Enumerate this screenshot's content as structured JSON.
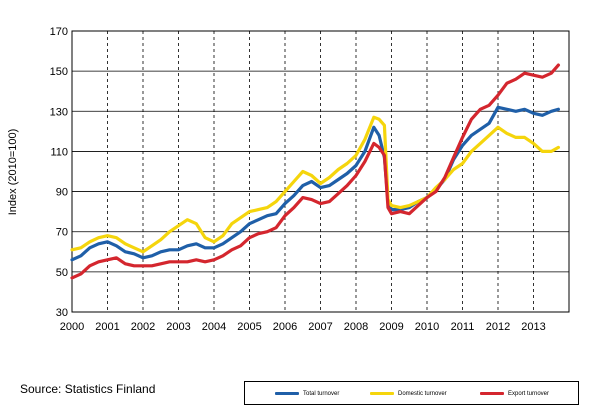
{
  "chart_data": {
    "type": "line",
    "title": "",
    "xlabel": "",
    "ylabel": "Index (2010=100)",
    "ylim": [
      30,
      170
    ],
    "yticks": [
      30,
      50,
      70,
      90,
      110,
      130,
      150,
      170
    ],
    "xlim": [
      2000,
      2014
    ],
    "xticks": [
      "2000",
      "2001",
      "2002",
      "2003",
      "2004",
      "2005",
      "2006",
      "2007",
      "2008",
      "2009",
      "2010",
      "2011",
      "2012",
      "2013"
    ],
    "grid": "vertical dashed yearly, horizontal solid",
    "legend_position": "bottom-right",
    "series": [
      {
        "name": "Total turnover",
        "color": "#1f5fa8",
        "points": [
          [
            2000.0,
            56
          ],
          [
            2000.25,
            58
          ],
          [
            2000.5,
            62
          ],
          [
            2000.75,
            64
          ],
          [
            2001.0,
            65
          ],
          [
            2001.25,
            63
          ],
          [
            2001.5,
            60
          ],
          [
            2001.75,
            59
          ],
          [
            2002.0,
            57
          ],
          [
            2002.25,
            58
          ],
          [
            2002.5,
            60
          ],
          [
            2002.75,
            61
          ],
          [
            2003.0,
            61
          ],
          [
            2003.25,
            63
          ],
          [
            2003.5,
            64
          ],
          [
            2003.75,
            62
          ],
          [
            2004.0,
            62
          ],
          [
            2004.25,
            64
          ],
          [
            2004.5,
            67
          ],
          [
            2004.75,
            70
          ],
          [
            2005.0,
            74
          ],
          [
            2005.25,
            76
          ],
          [
            2005.5,
            78
          ],
          [
            2005.75,
            79
          ],
          [
            2006.0,
            84
          ],
          [
            2006.25,
            88
          ],
          [
            2006.5,
            93
          ],
          [
            2006.75,
            95
          ],
          [
            2007.0,
            92
          ],
          [
            2007.25,
            93
          ],
          [
            2007.5,
            96
          ],
          [
            2007.75,
            99
          ],
          [
            2008.0,
            103
          ],
          [
            2008.25,
            110
          ],
          [
            2008.5,
            122
          ],
          [
            2008.65,
            118
          ],
          [
            2008.8,
            107
          ],
          [
            2008.9,
            85
          ],
          [
            2009.0,
            81
          ],
          [
            2009.25,
            81
          ],
          [
            2009.5,
            82
          ],
          [
            2009.75,
            85
          ],
          [
            2010.0,
            87
          ],
          [
            2010.25,
            91
          ],
          [
            2010.5,
            96
          ],
          [
            2010.75,
            106
          ],
          [
            2011.0,
            113
          ],
          [
            2011.25,
            118
          ],
          [
            2011.5,
            121
          ],
          [
            2011.75,
            124
          ],
          [
            2012.0,
            132
          ],
          [
            2012.25,
            131
          ],
          [
            2012.5,
            130
          ],
          [
            2012.75,
            131
          ],
          [
            2013.0,
            129
          ],
          [
            2013.25,
            128
          ],
          [
            2013.5,
            130
          ],
          [
            2013.7,
            131
          ]
        ]
      },
      {
        "name": "Domestic turnover",
        "color": "#f5d50c",
        "points": [
          [
            2000.0,
            61
          ],
          [
            2000.25,
            62
          ],
          [
            2000.5,
            65
          ],
          [
            2000.75,
            67
          ],
          [
            2001.0,
            68
          ],
          [
            2001.25,
            67
          ],
          [
            2001.5,
            64
          ],
          [
            2001.75,
            62
          ],
          [
            2002.0,
            60
          ],
          [
            2002.25,
            63
          ],
          [
            2002.5,
            66
          ],
          [
            2002.75,
            70
          ],
          [
            2003.0,
            73
          ],
          [
            2003.25,
            76
          ],
          [
            2003.5,
            74
          ],
          [
            2003.75,
            67
          ],
          [
            2004.0,
            65
          ],
          [
            2004.25,
            68
          ],
          [
            2004.5,
            74
          ],
          [
            2004.75,
            77
          ],
          [
            2005.0,
            80
          ],
          [
            2005.25,
            81
          ],
          [
            2005.5,
            82
          ],
          [
            2005.75,
            85
          ],
          [
            2006.0,
            90
          ],
          [
            2006.25,
            95
          ],
          [
            2006.5,
            100
          ],
          [
            2006.75,
            98
          ],
          [
            2007.0,
            94
          ],
          [
            2007.25,
            97
          ],
          [
            2007.5,
            101
          ],
          [
            2007.75,
            104
          ],
          [
            2008.0,
            108
          ],
          [
            2008.25,
            116
          ],
          [
            2008.5,
            127
          ],
          [
            2008.65,
            126
          ],
          [
            2008.8,
            123
          ],
          [
            2008.9,
            86
          ],
          [
            2009.0,
            83
          ],
          [
            2009.25,
            82
          ],
          [
            2009.5,
            83
          ],
          [
            2009.75,
            85
          ],
          [
            2010.0,
            87
          ],
          [
            2010.25,
            92
          ],
          [
            2010.5,
            96
          ],
          [
            2010.75,
            101
          ],
          [
            2011.0,
            104
          ],
          [
            2011.25,
            110
          ],
          [
            2011.5,
            114
          ],
          [
            2011.75,
            118
          ],
          [
            2012.0,
            122
          ],
          [
            2012.25,
            119
          ],
          [
            2012.5,
            117
          ],
          [
            2012.75,
            117
          ],
          [
            2013.0,
            114
          ],
          [
            2013.25,
            110
          ],
          [
            2013.5,
            110
          ],
          [
            2013.7,
            112
          ]
        ]
      },
      {
        "name": "Export turnover",
        "color": "#d4262e",
        "points": [
          [
            2000.0,
            47
          ],
          [
            2000.25,
            49
          ],
          [
            2000.5,
            53
          ],
          [
            2000.75,
            55
          ],
          [
            2001.0,
            56
          ],
          [
            2001.25,
            57
          ],
          [
            2001.5,
            54
          ],
          [
            2001.75,
            53
          ],
          [
            2002.0,
            53
          ],
          [
            2002.25,
            53
          ],
          [
            2002.5,
            54
          ],
          [
            2002.75,
            55
          ],
          [
            2003.0,
            55
          ],
          [
            2003.25,
            55
          ],
          [
            2003.5,
            56
          ],
          [
            2003.75,
            55
          ],
          [
            2004.0,
            56
          ],
          [
            2004.25,
            58
          ],
          [
            2004.5,
            61
          ],
          [
            2004.75,
            63
          ],
          [
            2005.0,
            67
          ],
          [
            2005.25,
            69
          ],
          [
            2005.5,
            70
          ],
          [
            2005.75,
            72
          ],
          [
            2006.0,
            78
          ],
          [
            2006.25,
            82
          ],
          [
            2006.5,
            87
          ],
          [
            2006.75,
            86
          ],
          [
            2007.0,
            84
          ],
          [
            2007.25,
            85
          ],
          [
            2007.5,
            89
          ],
          [
            2007.75,
            93
          ],
          [
            2008.0,
            98
          ],
          [
            2008.25,
            105
          ],
          [
            2008.5,
            114
          ],
          [
            2008.65,
            112
          ],
          [
            2008.8,
            108
          ],
          [
            2008.9,
            82
          ],
          [
            2009.0,
            79
          ],
          [
            2009.25,
            80
          ],
          [
            2009.5,
            79
          ],
          [
            2009.75,
            83
          ],
          [
            2010.0,
            87
          ],
          [
            2010.25,
            90
          ],
          [
            2010.5,
            97
          ],
          [
            2010.75,
            107
          ],
          [
            2011.0,
            117
          ],
          [
            2011.25,
            126
          ],
          [
            2011.5,
            131
          ],
          [
            2011.75,
            133
          ],
          [
            2012.0,
            138
          ],
          [
            2012.25,
            144
          ],
          [
            2012.5,
            146
          ],
          [
            2012.75,
            149
          ],
          [
            2013.0,
            148
          ],
          [
            2013.25,
            147
          ],
          [
            2013.5,
            149
          ],
          [
            2013.7,
            153
          ]
        ]
      }
    ]
  },
  "source_text": "Source: Statistics Finland",
  "legend": {
    "total": "Total turnover",
    "domestic": "Domestic turnover",
    "export": "Export turnover"
  }
}
